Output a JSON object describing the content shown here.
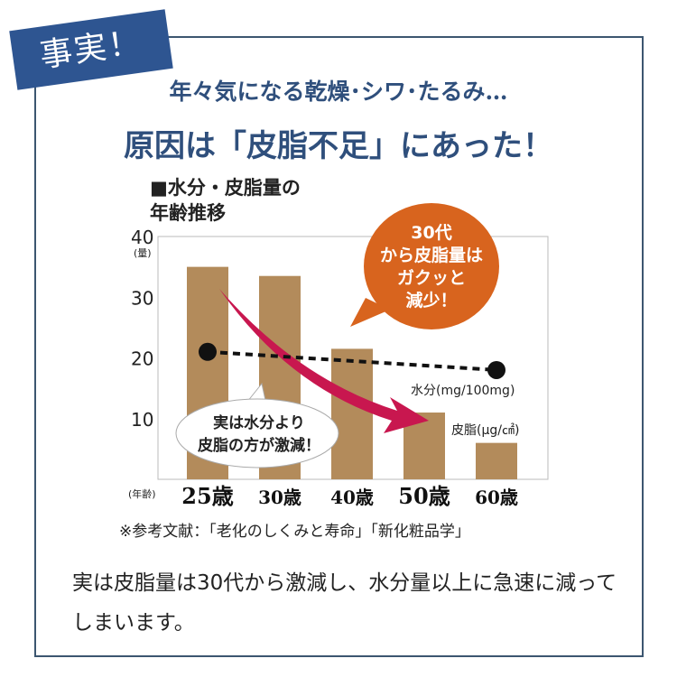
{
  "badge": "事実！",
  "headline1": "年々気になる乾燥･シワ･たるみ…",
  "headline2": "原因は「皮脂不足」にあった！",
  "chart_data": {
    "type": "bar",
    "title_line1": "■水分・皮脂量の",
    "title_line2": "年齢推移",
    "ylabel": "(量)",
    "xlabel": "(年齢)",
    "ylim": [
      0,
      40
    ],
    "yticks": [
      "10",
      "20",
      "30",
      "40"
    ],
    "categories": [
      "25歳",
      "30歳",
      "40歳",
      "50歳",
      "60歳"
    ],
    "series": [
      {
        "name": "皮脂(μg/㎠)",
        "type": "bar",
        "values": [
          35,
          33.5,
          21.5,
          11,
          6
        ],
        "color": "#b38b5b"
      },
      {
        "name": "水分(mg/100mg)",
        "type": "line",
        "x": [
          "25歳",
          "60歳"
        ],
        "values": [
          21,
          18
        ],
        "color": "#111111"
      }
    ],
    "callout_orange": [
      "30代",
      "から皮脂量は",
      "ガクッと",
      "減少！"
    ],
    "callout_white": [
      "実は水分より",
      "皮脂の方が激減！"
    ],
    "grid": false
  },
  "source": "※参考文献：「老化のしくみと寿命」「新化粧品学」",
  "body": "実は皮脂量は30代から激減し、水分量以上に急速に減ってしまいます。",
  "colors": {
    "frame": "#3c5670",
    "badge": "#2e5591",
    "arrow": "#c8174f",
    "callout": "#d8641e"
  }
}
